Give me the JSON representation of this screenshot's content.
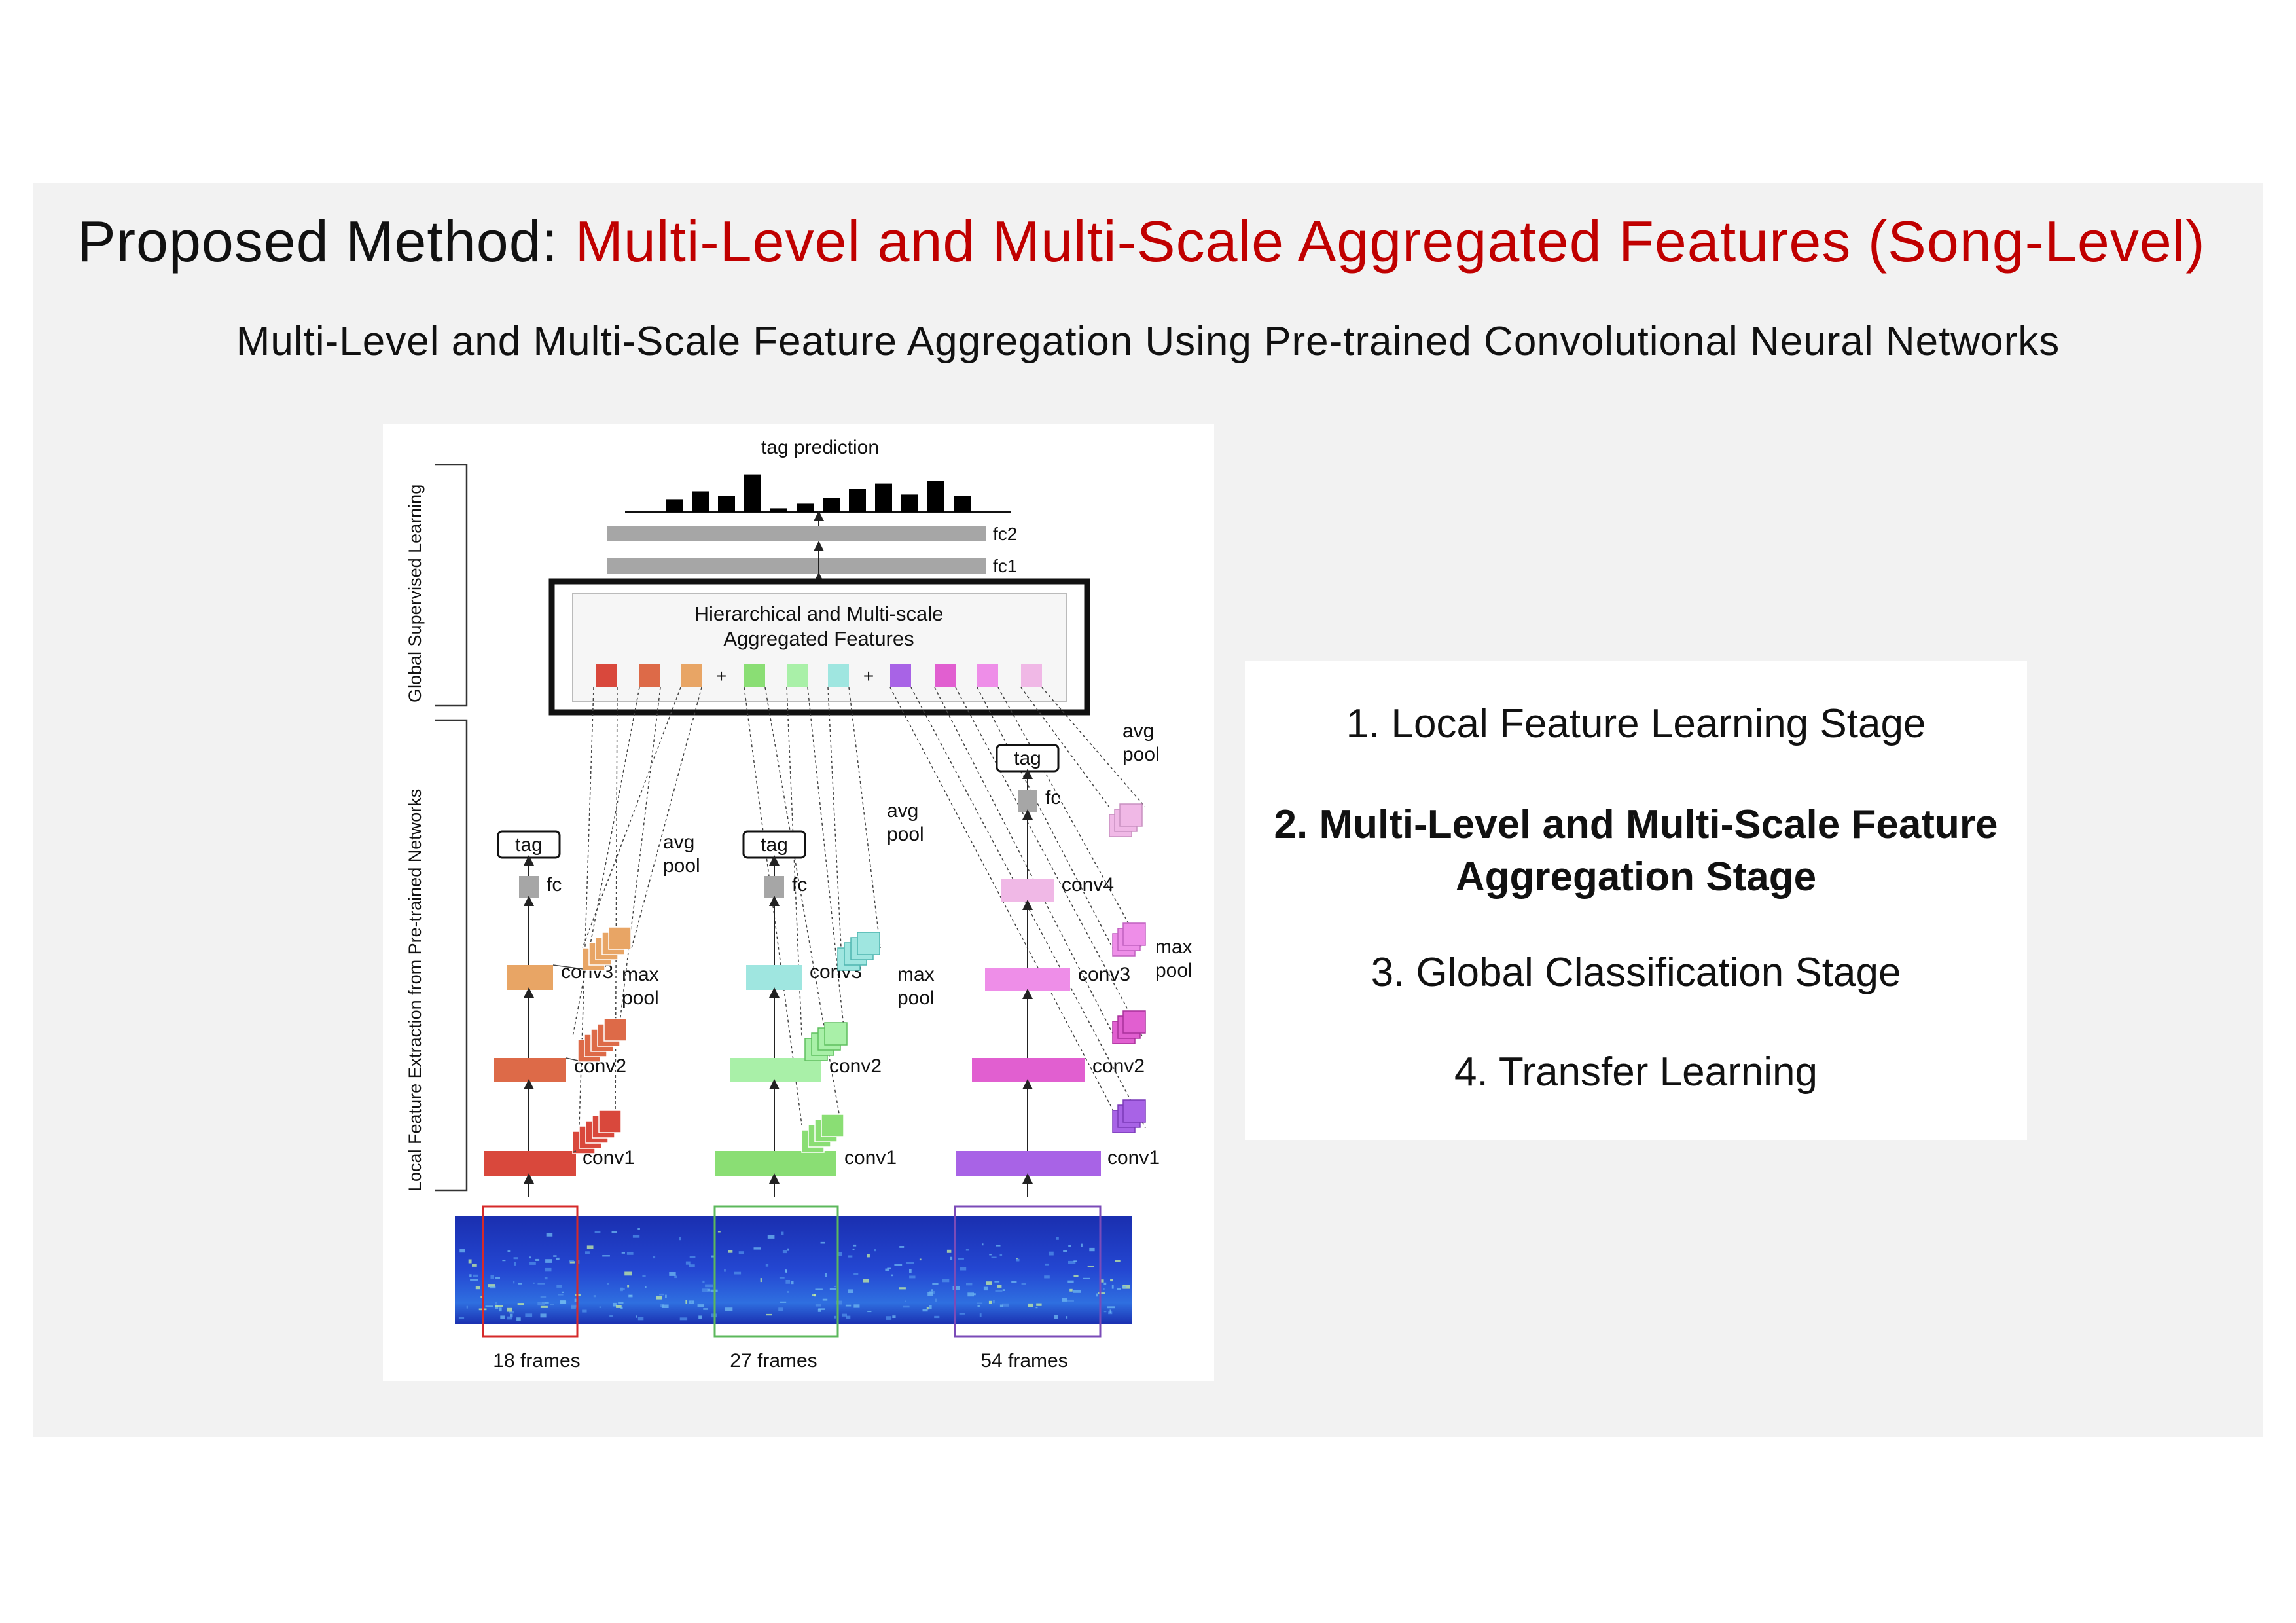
{
  "title": {
    "prefix": "Proposed Method:",
    "highlight": "Multi-Level and Multi-Scale Aggregated Features (Song-Level)"
  },
  "subtitle": "Multi-Level and Multi-Scale Feature Aggregation Using Pre-trained Convolutional Neural Networks",
  "figure": {
    "global_label": "Global Supervised Learning",
    "local_label": "Local Feature Extraction from Pre-trained Networks",
    "tag_prediction": "tag prediction",
    "tag_prediction_levels": [
      0.28,
      0.45,
      0.35,
      0.82,
      0.08,
      0.18,
      0.3,
      0.5,
      0.62,
      0.38,
      0.68,
      0.35
    ],
    "fc2": "fc2",
    "fc1": "fc1",
    "aggregated_line1": "Hierarchical and Multi-scale",
    "aggregated_line2": "Aggregated Features",
    "plus": "+",
    "tag": "tag",
    "fc": "fc",
    "conv1": "conv1",
    "conv2": "conv2",
    "conv3": "conv3",
    "conv4": "conv4",
    "avg": "avg",
    "max": "max",
    "pool": "pool",
    "frames": [
      "18 frames",
      "27 frames",
      "54 frames"
    ],
    "colors": {
      "branch1": [
        "#d9483c",
        "#dd6a48",
        "#e8a565"
      ],
      "branch2": [
        "#8ade74",
        "#a9f0a8",
        "#9fe6e0"
      ],
      "branch3": [
        "#a863e6",
        "#e15fd0",
        "#ee8ee8",
        "#f0b8e6"
      ],
      "fc_gray": "#a6a6a6",
      "title_red": "#c00000",
      "spectrogram": "#1f3cc4"
    }
  },
  "stages": [
    "1.  Local Feature Learning Stage",
    "2.  Multi-Level and Multi-Scale Feature",
    "Aggregation  Stage",
    "3.  Global Classification Stage",
    "4.  Transfer Learning"
  ]
}
